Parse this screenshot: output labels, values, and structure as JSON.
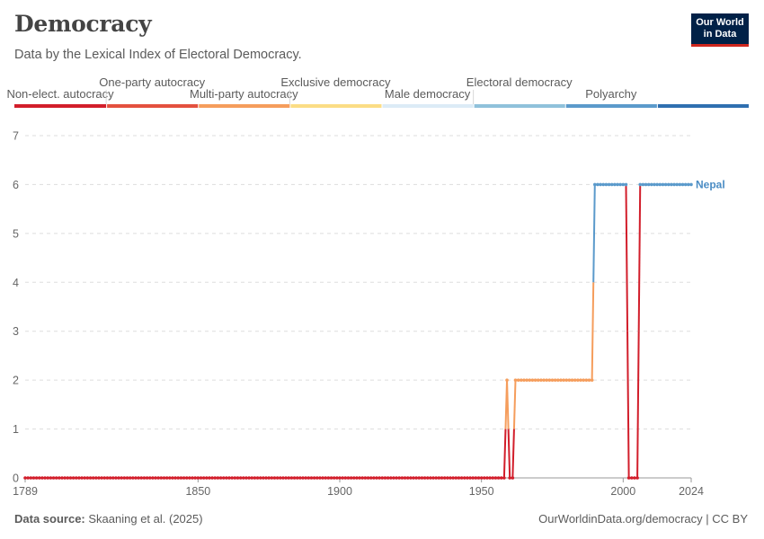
{
  "header": {
    "title": "Democracy",
    "subtitle": "Data by the Lexical Index of Electoral Democracy.",
    "logo_line1": "Our World",
    "logo_line2": "in Data"
  },
  "footer": {
    "source_label": "Data source:",
    "source_value": "Skaaning et al. (2025)",
    "credit": "OurWorldinData.org/democracy | CC BY"
  },
  "chart_data": {
    "type": "line",
    "title": "Democracy",
    "subtitle": "Data by the Lexical Index of Electoral Democracy.",
    "ylim": [
      0,
      7
    ],
    "yticks": [
      0,
      1,
      2,
      3,
      4,
      5,
      6,
      7
    ],
    "xlim": [
      1789,
      2024
    ],
    "xticks": [
      1789,
      1850,
      1900,
      1950,
      2000,
      2024
    ],
    "grid": "horizontal dashed",
    "legend": {
      "placement": "top",
      "categories": [
        {
          "label": "Non-elect. autocracy",
          "color": "#d21e2b"
        },
        {
          "label": "One-party autocracy",
          "color": "#e4513e"
        },
        {
          "label": "Multi-party autocracy",
          "color": "#f59d5c"
        },
        {
          "label": "Exclusive democracy",
          "color": "#fbdd85"
        },
        {
          "label": "Male democracy",
          "color": "#dcebf6"
        },
        {
          "label": "Electoral democracy",
          "color": "#8fc1db"
        },
        {
          "label": "Polyarchy",
          "color": "#5b9acb"
        },
        {
          "label": "",
          "color": "#2f6fb0"
        }
      ]
    },
    "series": [
      {
        "name": "Nepal",
        "segments": [
          {
            "x": [
              1789,
              1958
            ],
            "y": 0
          },
          {
            "x": [
              1959,
              1959
            ],
            "y": 2
          },
          {
            "x": [
              1960,
              1961
            ],
            "y": 0
          },
          {
            "x": [
              1962,
              1989
            ],
            "y": 2
          },
          {
            "x": [
              1990,
              2001
            ],
            "y": 6
          },
          {
            "x": [
              2002,
              2005
            ],
            "y": 0
          },
          {
            "x": [
              2006,
              2024
            ],
            "y": 6
          }
        ]
      }
    ]
  }
}
